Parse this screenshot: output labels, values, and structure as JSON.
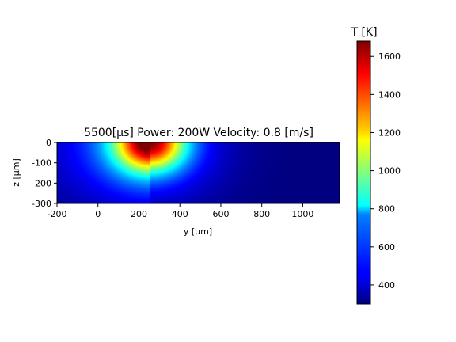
{
  "chart_data": {
    "type": "heatmap",
    "title": "5500[μs] Power: 200W Velocity: 0.8 [m/s]",
    "xlabel": "y [μm]",
    "ylabel": "z [μm]",
    "xlim": [
      -200,
      1180
    ],
    "ylim": [
      -300,
      0
    ],
    "x_ticks": [
      "-200",
      "0",
      "200",
      "400",
      "600",
      "800",
      "1000"
    ],
    "y_ticks": [
      "0",
      "-100",
      "-200",
      "-300"
    ],
    "x_tick_values": [
      -200,
      0,
      200,
      400,
      600,
      800,
      1000
    ],
    "y_tick_values": [
      0,
      -100,
      -200,
      -300
    ],
    "colormap": "jet",
    "colorbar": {
      "label": "T [K]",
      "min": 300,
      "max": 1680,
      "ticks": [
        "400",
        "600",
        "800",
        "1000",
        "1200",
        "1400",
        "1600"
      ],
      "tick_values": [
        400,
        600,
        800,
        1000,
        1200,
        1400,
        1600
      ]
    },
    "field": {
      "ambient_T": 300,
      "peak_T": 1680,
      "peak_y": 255,
      "peak_z": 0,
      "description_values": {
        "T_at_y0_z0": 620,
        "T_at_y500_z0": 560,
        "T_at_y255_z_minus150": 820
      }
    }
  }
}
